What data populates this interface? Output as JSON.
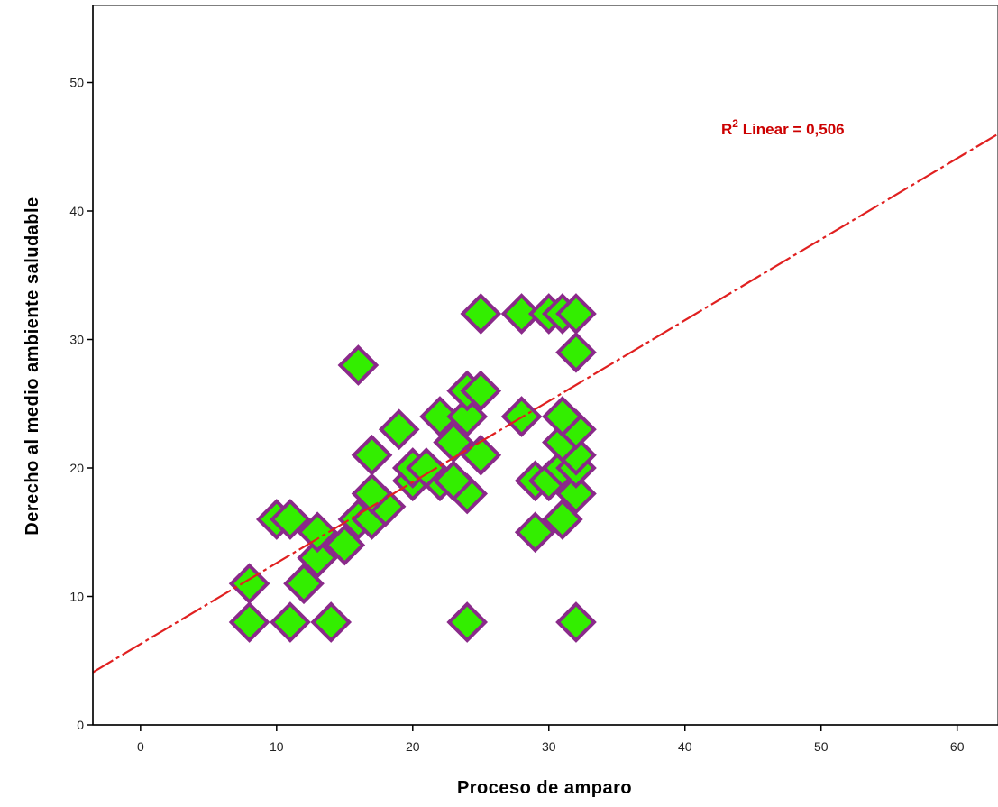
{
  "chart_data": {
    "type": "scatter",
    "title": "",
    "xlabel": "Proceso de amparo",
    "ylabel": "Derecho al medio ambiente saludable",
    "xlim": [
      -3.5,
      63
    ],
    "ylim": [
      0,
      56
    ],
    "x_ticks": [
      "0",
      "10",
      "20",
      "30",
      "40",
      "50",
      "60"
    ],
    "y_ticks": [
      "0",
      "10",
      "20",
      "30",
      "40",
      "50"
    ],
    "grid": false,
    "legend": "none",
    "colors": {
      "marker_fill": "#33ee00",
      "marker_edge": "#8a2a8a",
      "fit_line": "#e02020",
      "axis": "#000000",
      "annotation": "#cc0000"
    },
    "points": [
      [
        8,
        8
      ],
      [
        11,
        8
      ],
      [
        14,
        8
      ],
      [
        24,
        8
      ],
      [
        32,
        8
      ],
      [
        8,
        11
      ],
      [
        12,
        11
      ],
      [
        13,
        13
      ],
      [
        13,
        15
      ],
      [
        15,
        14
      ],
      [
        10,
        16
      ],
      [
        11,
        16
      ],
      [
        16,
        16
      ],
      [
        17,
        16
      ],
      [
        18,
        17
      ],
      [
        17,
        18
      ],
      [
        24,
        18
      ],
      [
        32,
        18
      ],
      [
        20,
        19
      ],
      [
        22,
        19
      ],
      [
        23,
        19
      ],
      [
        29,
        19
      ],
      [
        30,
        19
      ],
      [
        20,
        20
      ],
      [
        21,
        20
      ],
      [
        31,
        20
      ],
      [
        32,
        20
      ],
      [
        17,
        21
      ],
      [
        25,
        21
      ],
      [
        32,
        21
      ],
      [
        23,
        22
      ],
      [
        31,
        22
      ],
      [
        32,
        23
      ],
      [
        19,
        23
      ],
      [
        22,
        24
      ],
      [
        24,
        24
      ],
      [
        28,
        24
      ],
      [
        31,
        24
      ],
      [
        24,
        26
      ],
      [
        25,
        26
      ],
      [
        16,
        28
      ],
      [
        32,
        29
      ],
      [
        29,
        15
      ],
      [
        31,
        16
      ],
      [
        25,
        32
      ],
      [
        28,
        32
      ],
      [
        30,
        32
      ],
      [
        31,
        32
      ],
      [
        32,
        32
      ]
    ],
    "fit": {
      "type": "linear",
      "intercept": 6.3,
      "slope": 0.63,
      "label_main": "R",
      "label_sup": "2",
      "label_rest": " Linear = 0,506"
    }
  }
}
